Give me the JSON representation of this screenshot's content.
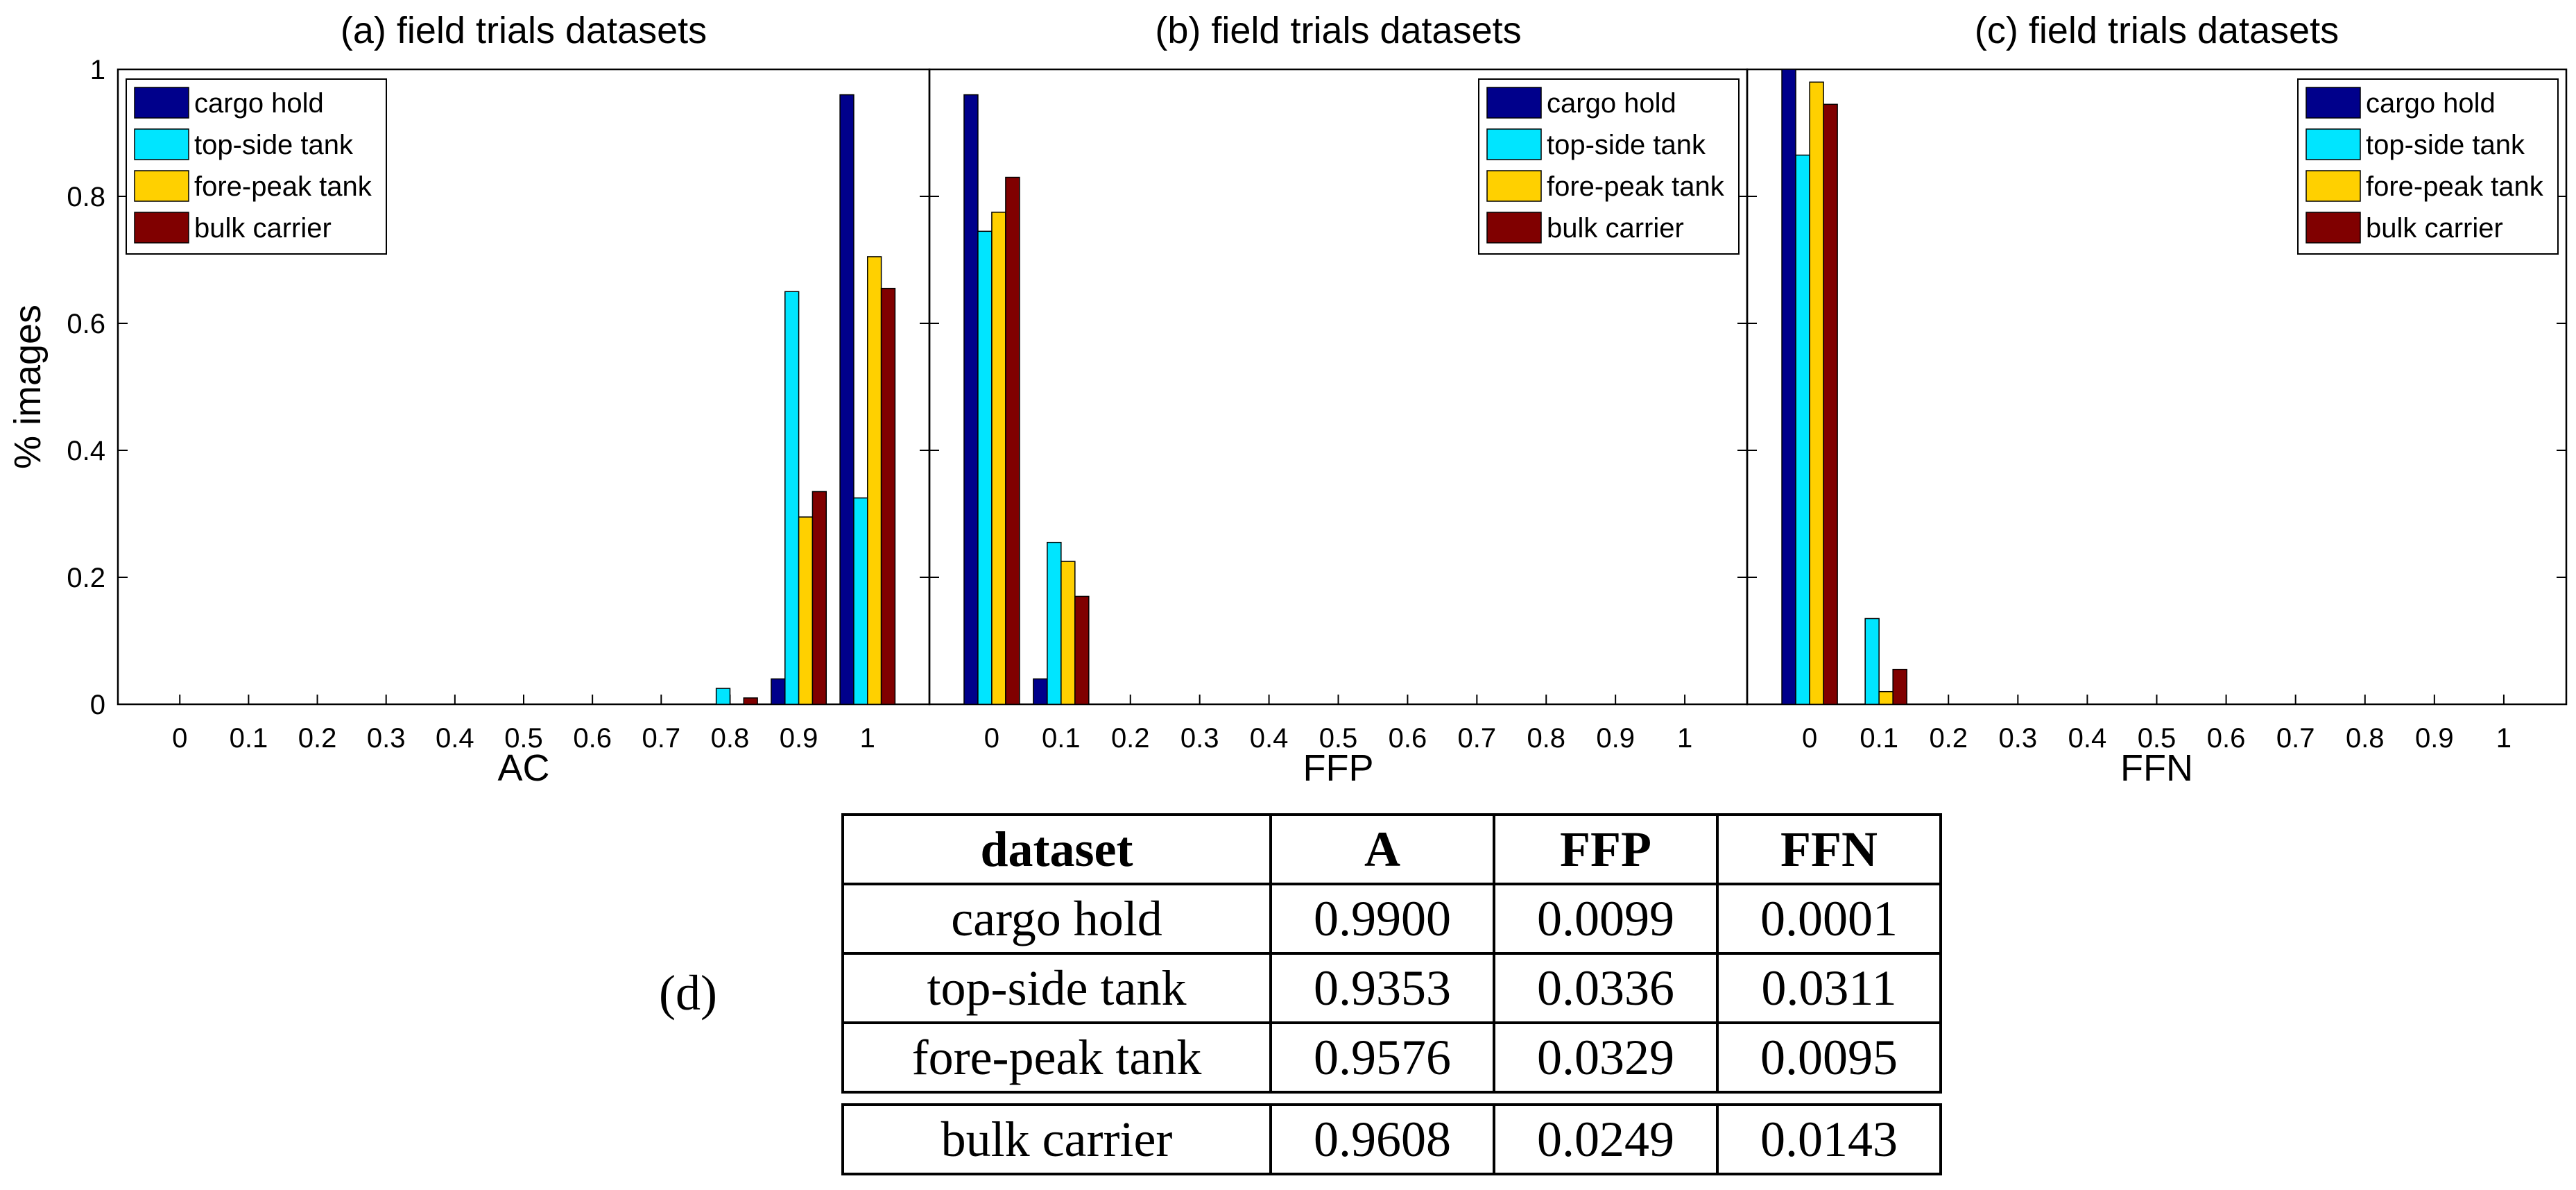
{
  "chart_data": [
    {
      "type": "bar",
      "title": "(a) field trials datasets",
      "xlabel": "AC",
      "ylabel": "% images",
      "categories": [
        "0",
        "0.1",
        "0.2",
        "0.3",
        "0.4",
        "0.5",
        "0.6",
        "0.7",
        "0.8",
        "0.9",
        "1"
      ],
      "ylim": [
        0,
        1
      ],
      "yticks": [
        "0",
        "0.2",
        "0.4",
        "0.6",
        "0.8",
        "1"
      ],
      "legend_position": "top-left",
      "series": [
        {
          "name": "cargo hold",
          "color": "#00008b",
          "values": [
            0,
            0,
            0,
            0,
            0,
            0,
            0,
            0,
            0,
            0.04,
            0.96
          ]
        },
        {
          "name": "top-side tank",
          "color": "#00e5ff",
          "values": [
            0,
            0,
            0,
            0,
            0,
            0,
            0,
            0,
            0.025,
            0.65,
            0.325
          ]
        },
        {
          "name": "fore-peak tank",
          "color": "#ffd000",
          "values": [
            0,
            0,
            0,
            0,
            0,
            0,
            0,
            0,
            0,
            0.295,
            0.705
          ]
        },
        {
          "name": "bulk carrier",
          "color": "#800000",
          "values": [
            0,
            0,
            0,
            0,
            0,
            0,
            0,
            0,
            0.01,
            0.335,
            0.655
          ]
        }
      ]
    },
    {
      "type": "bar",
      "title": "(b) field trials datasets",
      "xlabel": "FFP",
      "ylabel": "",
      "categories": [
        "0",
        "0.1",
        "0.2",
        "0.3",
        "0.4",
        "0.5",
        "0.6",
        "0.7",
        "0.8",
        "0.9",
        "1"
      ],
      "ylim": [
        0,
        1
      ],
      "legend_position": "top-right",
      "series": [
        {
          "name": "cargo hold",
          "color": "#00008b",
          "values": [
            0.96,
            0.04,
            0,
            0,
            0,
            0,
            0,
            0,
            0,
            0,
            0
          ]
        },
        {
          "name": "top-side tank",
          "color": "#00e5ff",
          "values": [
            0.745,
            0.255,
            0,
            0,
            0,
            0,
            0,
            0,
            0,
            0,
            0
          ]
        },
        {
          "name": "fore-peak tank",
          "color": "#ffd000",
          "values": [
            0.775,
            0.225,
            0,
            0,
            0,
            0,
            0,
            0,
            0,
            0,
            0
          ]
        },
        {
          "name": "bulk carrier",
          "color": "#800000",
          "values": [
            0.83,
            0.17,
            0,
            0,
            0,
            0,
            0,
            0,
            0,
            0,
            0
          ]
        }
      ]
    },
    {
      "type": "bar",
      "title": "(c) field trials datasets",
      "xlabel": "FFN",
      "ylabel": "",
      "categories": [
        "0",
        "0.1",
        "0.2",
        "0.3",
        "0.4",
        "0.5",
        "0.6",
        "0.7",
        "0.8",
        "0.9",
        "1"
      ],
      "ylim": [
        0,
        1
      ],
      "legend_position": "top-right",
      "series": [
        {
          "name": "cargo hold",
          "color": "#00008b",
          "values": [
            1.0,
            0,
            0,
            0,
            0,
            0,
            0,
            0,
            0,
            0,
            0
          ]
        },
        {
          "name": "top-side tank",
          "color": "#00e5ff",
          "values": [
            0.865,
            0.135,
            0,
            0,
            0,
            0,
            0,
            0,
            0,
            0,
            0
          ]
        },
        {
          "name": "fore-peak tank",
          "color": "#ffd000",
          "values": [
            0.98,
            0.02,
            0,
            0,
            0,
            0,
            0,
            0,
            0,
            0,
            0
          ]
        },
        {
          "name": "bulk carrier",
          "color": "#800000",
          "values": [
            0.945,
            0.055,
            0,
            0,
            0,
            0,
            0,
            0,
            0,
            0,
            0
          ]
        }
      ]
    },
    {
      "type": "table",
      "label": "(d)",
      "headers": [
        "dataset",
        "A",
        "FFP",
        "FFN"
      ],
      "rows": [
        [
          "cargo hold",
          "0.9900",
          "0.0099",
          "0.0001"
        ],
        [
          "top-side tank",
          "0.9353",
          "0.0336",
          "0.0311"
        ],
        [
          "fore-peak tank",
          "0.9576",
          "0.0329",
          "0.0095"
        ]
      ],
      "footer_row": [
        "bulk carrier",
        "0.9608",
        "0.0249",
        "0.0143"
      ]
    }
  ]
}
